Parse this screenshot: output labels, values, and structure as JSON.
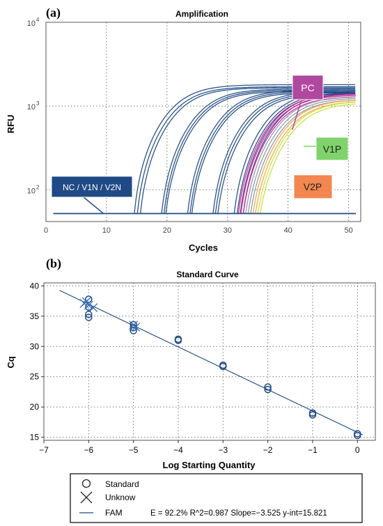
{
  "chart_data": [
    {
      "panel_label": "(a)",
      "type": "line",
      "title": "Amplification",
      "xlabel": "Cycles",
      "ylabel": "RFU",
      "xlim": [
        0,
        52
      ],
      "ylim_log10": [
        1.62,
        4
      ],
      "y_scale": "log",
      "x_ticks": [
        0,
        10,
        20,
        30,
        40,
        50
      ],
      "y_tick_labels": [
        {
          "base": "10",
          "exp": "2",
          "value": 100
        },
        {
          "base": "10",
          "exp": "3",
          "value": 1000
        },
        {
          "base": "10",
          "exp": "4",
          "value": 10000
        }
      ],
      "grid": true,
      "baseline_rfu": 52,
      "curve_groups": [
        {
          "color": "#1f4a85",
          "midpoints": [
            19.8,
            20.3,
            20.8
          ],
          "plateau_rfu": [
            1800,
            1700,
            1650
          ]
        },
        {
          "color": "#1f4a85",
          "midpoints": [
            24.3,
            24.7,
            25.0
          ],
          "plateau_rfu": [
            1600,
            1550,
            1500
          ]
        },
        {
          "color": "#1f4a85",
          "midpoints": [
            28.6,
            29.0,
            29.3
          ],
          "plateau_rfu": [
            1550,
            1500,
            1450
          ]
        },
        {
          "color": "#1f4a85",
          "midpoints": [
            32.8,
            33.2,
            33.6
          ],
          "plateau_rfu": [
            1500,
            1450,
            1400
          ]
        },
        {
          "color": "#1f4a85",
          "midpoints": [
            36.3,
            36.8,
            37.3,
            37.8
          ],
          "plateau_rfu": [
            1500,
            1450,
            1420,
            1400
          ]
        },
        {
          "color": "#e0219a",
          "midpoints": [
            37.0,
            37.4,
            37.8
          ],
          "plateau_rfu": [
            1400,
            1350,
            1300
          ]
        },
        {
          "color": "#8c96a8",
          "midpoints": [
            38.2,
            38.6,
            39.0
          ],
          "plateau_rfu": [
            1300,
            1250,
            1200
          ]
        },
        {
          "color": "#f4a742",
          "midpoints": [
            39.4,
            39.8
          ],
          "plateau_rfu": [
            1200,
            1150
          ]
        },
        {
          "color": "#c8e23c",
          "midpoints": [
            40.2,
            40.6
          ],
          "plateau_rfu": [
            1150,
            1100
          ]
        }
      ],
      "annotations": [
        {
          "label": "NC / V1N / V2N",
          "color": "#1f4a85",
          "target": {
            "x": 9.5,
            "rfu": 52
          }
        },
        {
          "label": "PC",
          "color": "#b0489f",
          "target": {
            "x": 40.7,
            "rfu": 520
          }
        },
        {
          "label": "V1P",
          "color": "#7fd36a",
          "target": {
            "x": 42.6,
            "rfu": 330
          }
        },
        {
          "label": "V2P",
          "color": "#f2874f",
          "target": {
            "x": 41.0,
            "rfu": 150
          }
        }
      ]
    },
    {
      "panel_label": "(b)",
      "type": "scatter",
      "title": "Standard Curve",
      "xlabel": "Log Starting Quantity",
      "ylabel": "Cq",
      "xlim": [
        -7,
        0.4
      ],
      "ylim": [
        14.5,
        40.5
      ],
      "x_ticks": [
        -7,
        -6,
        -5,
        -4,
        -3,
        -2,
        -1,
        0
      ],
      "y_ticks": [
        15,
        20,
        25,
        30,
        35,
        40
      ],
      "grid": true,
      "standard_points": [
        {
          "x": -6,
          "y": 37.8
        },
        {
          "x": -6,
          "y": 36.5
        },
        {
          "x": -6,
          "y": 35.3
        },
        {
          "x": -6,
          "y": 34.8
        },
        {
          "x": -5,
          "y": 33.6
        },
        {
          "x": -5,
          "y": 33.1
        },
        {
          "x": -5,
          "y": 32.6
        },
        {
          "x": -4,
          "y": 31.2
        },
        {
          "x": -4,
          "y": 31.0
        },
        {
          "x": -3,
          "y": 26.9
        },
        {
          "x": -3,
          "y": 26.7
        },
        {
          "x": -2,
          "y": 23.3
        },
        {
          "x": -2,
          "y": 22.9
        },
        {
          "x": -1,
          "y": 19.0
        },
        {
          "x": -1,
          "y": 18.7
        },
        {
          "x": 0,
          "y": 15.6
        },
        {
          "x": 0,
          "y": 15.3
        }
      ],
      "unknown_points": [
        {
          "x": -6.1,
          "y": 37.1
        },
        {
          "x": -6.0,
          "y": 36.8
        },
        {
          "x": -5.9,
          "y": 36.4
        },
        {
          "x": -6.05,
          "y": 37.4
        },
        {
          "x": -5.0,
          "y": 33.5
        },
        {
          "x": -4.95,
          "y": 33.2
        }
      ],
      "fit_line": {
        "slope": -3.525,
        "intercept": 15.821,
        "x_range": [
          -6.65,
          0.12
        ]
      },
      "legend": {
        "placement": "bottom",
        "entries": [
          {
            "marker": "circle",
            "label": "Standard"
          },
          {
            "marker": "cross",
            "label": "Unknow"
          },
          {
            "marker": "line",
            "label": "FAM",
            "detail": "E = 92.2% R^2=0.987 Slope=−3.525 y-int=15.821"
          }
        ]
      }
    }
  ]
}
